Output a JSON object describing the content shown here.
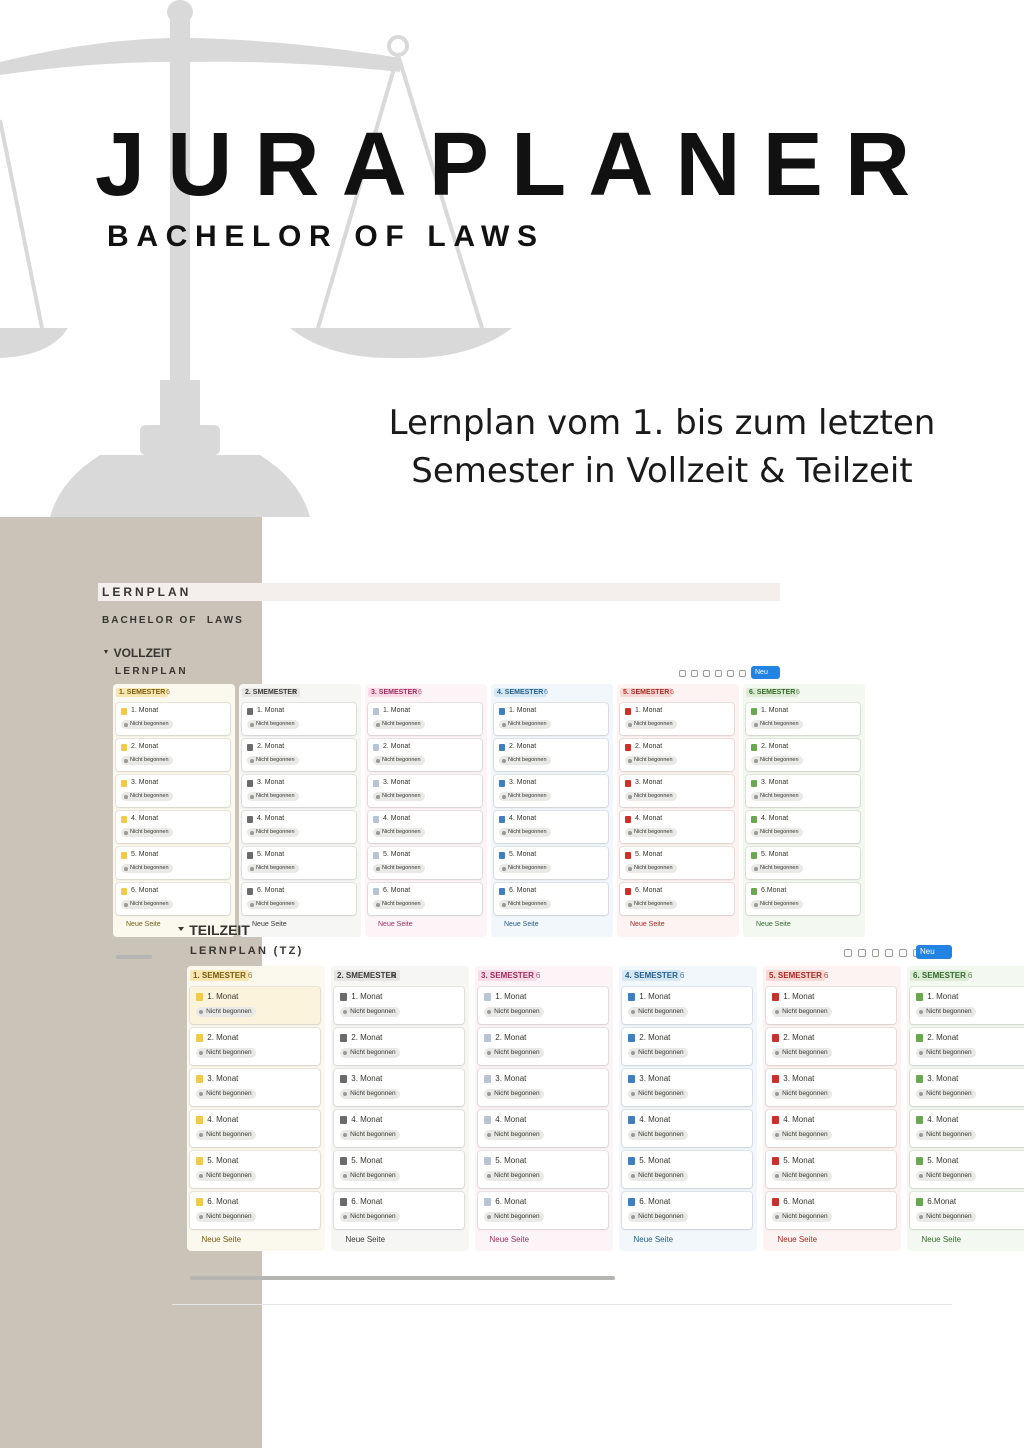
{
  "header": {
    "title": "JURAPLANER",
    "subtitle": "BACHELOR OF LAWS",
    "tagline": [
      "Lernplan vom 1. bis zum letzten",
      "Semester in Vollzeit & Teilzeit"
    ]
  },
  "screens": [
    {
      "page_title": "LERNPLAN",
      "page_subtitle": "BACHELOR OF  LAWS",
      "section": "VOLLZEIT",
      "board_title": "LERNPLAN",
      "new_button": "Neu",
      "new_page": "Neue Seite",
      "columns": [
        {
          "name": "1. SEMESTER",
          "count": 6,
          "cards": [
            {
              "title": "1. Monat",
              "status": "Nicht begonnen"
            },
            {
              "title": "2. Monat",
              "status": "Nicht begonnen"
            },
            {
              "title": "3. Monat",
              "status": "Nicht begonnen"
            },
            {
              "title": "4. Monat",
              "status": "Nicht begonnen"
            },
            {
              "title": "5. Monat",
              "status": "Nicht begonnen"
            },
            {
              "title": "6. Monat",
              "status": "Nicht begonnen"
            }
          ]
        },
        {
          "name": "2. SMEMESTER",
          "count": 6,
          "cards": [
            {
              "title": "1. Monat",
              "status": "Nicht begonnen"
            },
            {
              "title": "2. Monat",
              "status": "Nicht begonnen"
            },
            {
              "title": "3. Monat",
              "status": "Nicht begonnen"
            },
            {
              "title": "4. Monat",
              "status": "Nicht begonnen"
            },
            {
              "title": "5. Monat",
              "status": "Nicht begonnen"
            },
            {
              "title": "6. Monat",
              "status": "Nicht begonnen"
            }
          ]
        },
        {
          "name": "3. SEMESTER",
          "count": 6,
          "cards": [
            {
              "title": "1. Monat",
              "status": "Nicht begonnen"
            },
            {
              "title": "2. Monat",
              "status": "Nicht begonnen"
            },
            {
              "title": "3. Monat",
              "status": "Nicht begonnen"
            },
            {
              "title": "4. Monat",
              "status": "Nicht begonnen"
            },
            {
              "title": "5. Monat",
              "status": "Nicht begonnen"
            },
            {
              "title": "6. Monat",
              "status": "Nicht begonnen"
            }
          ]
        },
        {
          "name": "4. SEMESTER",
          "count": 6,
          "cards": [
            {
              "title": "1. Monat",
              "status": "Nicht begonnen"
            },
            {
              "title": "2. Monat",
              "status": "Nicht begonnen"
            },
            {
              "title": "3. Monat",
              "status": "Nicht begonnen"
            },
            {
              "title": "4. Monat",
              "status": "Nicht begonnen"
            },
            {
              "title": "5. Monat",
              "status": "Nicht begonnen"
            },
            {
              "title": "6. Monat",
              "status": "Nicht begonnen"
            }
          ]
        },
        {
          "name": "5. SEMESTER",
          "count": 6,
          "cards": [
            {
              "title": "1. Monat",
              "status": "Nicht begonnen"
            },
            {
              "title": "2. Monat",
              "status": "Nicht begonnen"
            },
            {
              "title": "3. Monat",
              "status": "Nicht begonnen"
            },
            {
              "title": "4. Monat",
              "status": "Nicht begonnen"
            },
            {
              "title": "5. Monat",
              "status": "Nicht begonnen"
            },
            {
              "title": "6. Monat",
              "status": "Nicht begonnen"
            }
          ]
        },
        {
          "name": "6. SEMESTER",
          "count": 6,
          "cards": [
            {
              "title": "1. Monat",
              "status": "Nicht begonnen"
            },
            {
              "title": "2. Monat",
              "status": "Nicht begonnen"
            },
            {
              "title": "3. Monat",
              "status": "Nicht begonnen"
            },
            {
              "title": "4. Monat",
              "status": "Nicht begonnen"
            },
            {
              "title": "5. Monat",
              "status": "Nicht begonnen"
            },
            {
              "title": "6.Monat",
              "status": "Nicht begonnen"
            }
          ]
        }
      ]
    },
    {
      "section": "TEILZEIT",
      "board_title": "LERNPLAN (TZ)",
      "new_button": "Neu",
      "new_page": "Neue Seite",
      "columns": [
        {
          "name": "1. SEMESTER",
          "count": 6,
          "cards": [
            {
              "title": "1. Monat",
              "status": "Nicht begonnen"
            },
            {
              "title": "2. Monat",
              "status": "Nicht begonnen"
            },
            {
              "title": "3. Monat",
              "status": "Nicht begonnen"
            },
            {
              "title": "4. Monat",
              "status": "Nicht begonnen"
            },
            {
              "title": "5. Monat",
              "status": "Nicht begonnen"
            },
            {
              "title": "6. Monat",
              "status": "Nicht begonnen"
            }
          ]
        },
        {
          "name": "2. SMEMESTER",
          "count": 6,
          "cards": [
            {
              "title": "1. Monat",
              "status": "Nicht begonnen"
            },
            {
              "title": "2. Monat",
              "status": "Nicht begonnen"
            },
            {
              "title": "3. Monat",
              "status": "Nicht begonnen"
            },
            {
              "title": "4. Monat",
              "status": "Nicht begonnen"
            },
            {
              "title": "5. Monat",
              "status": "Nicht begonnen"
            },
            {
              "title": "6. Monat",
              "status": "Nicht begonnen"
            }
          ]
        },
        {
          "name": "3. SEMESTER",
          "count": 6,
          "cards": [
            {
              "title": "1. Monat",
              "status": "Nicht begonnen"
            },
            {
              "title": "2. Monat",
              "status": "Nicht begonnen"
            },
            {
              "title": "3. Monat",
              "status": "Nicht begonnen"
            },
            {
              "title": "4. Monat",
              "status": "Nicht begonnen"
            },
            {
              "title": "5. Monat",
              "status": "Nicht begonnen"
            },
            {
              "title": "6. Monat",
              "status": "Nicht begonnen"
            }
          ]
        },
        {
          "name": "4. SEMESTER",
          "count": 6,
          "cards": [
            {
              "title": "1. Monat",
              "status": "Nicht begonnen"
            },
            {
              "title": "2. Monat",
              "status": "Nicht begonnen"
            },
            {
              "title": "3. Monat",
              "status": "Nicht begonnen"
            },
            {
              "title": "4. Monat",
              "status": "Nicht begonnen"
            },
            {
              "title": "5. Monat",
              "status": "Nicht begonnen"
            },
            {
              "title": "6. Monat",
              "status": "Nicht begonnen"
            }
          ]
        },
        {
          "name": "5. SEMESTER",
          "count": 6,
          "cards": [
            {
              "title": "1. Monat",
              "status": "Nicht begonnen"
            },
            {
              "title": "2. Monat",
              "status": "Nicht begonnen"
            },
            {
              "title": "3. Monat",
              "status": "Nicht begonnen"
            },
            {
              "title": "4. Monat",
              "status": "Nicht begonnen"
            },
            {
              "title": "5. Monat",
              "status": "Nicht begonnen"
            },
            {
              "title": "6. Monat",
              "status": "Nicht begonnen"
            }
          ]
        },
        {
          "name": "6. SEMESTER",
          "count": 6,
          "cards": [
            {
              "title": "1. Monat",
              "status": "Nicht begonnen"
            },
            {
              "title": "2. Monat",
              "status": "Nicht begonnen"
            },
            {
              "title": "3. Monat",
              "status": "Nicht begonnen"
            },
            {
              "title": "4. Monat",
              "status": "Nicht begonnen"
            },
            {
              "title": "5. Monat",
              "status": "Nicht begonnen"
            },
            {
              "title": "6.Monat",
              "status": "Nicht begonnen"
            }
          ]
        }
      ]
    }
  ]
}
